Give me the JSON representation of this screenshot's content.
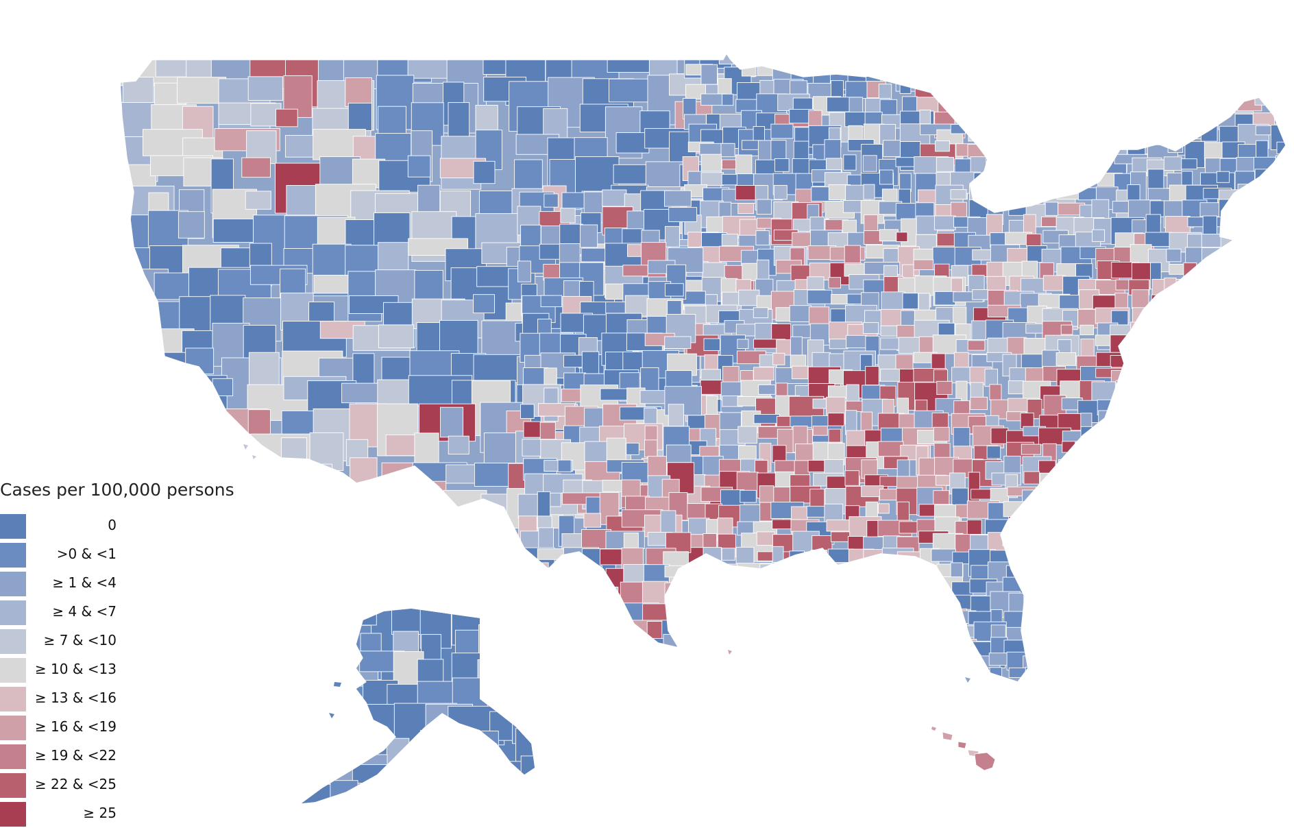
{
  "legend": {
    "title": "Cases per 100,000 persons",
    "bins": [
      {
        "label": "0",
        "color": "#5b80b8"
      },
      {
        "label": ">0 & <1",
        "color": "#6a8cc1"
      },
      {
        "label": "≥ 1 & <4",
        "color": "#8da3c9"
      },
      {
        "label": "≥ 4 & <7",
        "color": "#a6b6d2"
      },
      {
        "label": "≥ 7 & <10",
        "color": "#c0c8d8"
      },
      {
        "label": "≥ 10 & <13",
        "color": "#d8d8d8"
      },
      {
        "label": "≥ 13 & <16",
        "color": "#d8bcc2"
      },
      {
        "label": "≥ 16 & <19",
        "color": "#cfa0a8"
      },
      {
        "label": "≥ 19 & <22",
        "color": "#c4808c"
      },
      {
        "label": "≥ 22 & <25",
        "color": "#b8606e"
      },
      {
        "label": "≥ 25",
        "color": "#a83e52"
      }
    ]
  }
}
